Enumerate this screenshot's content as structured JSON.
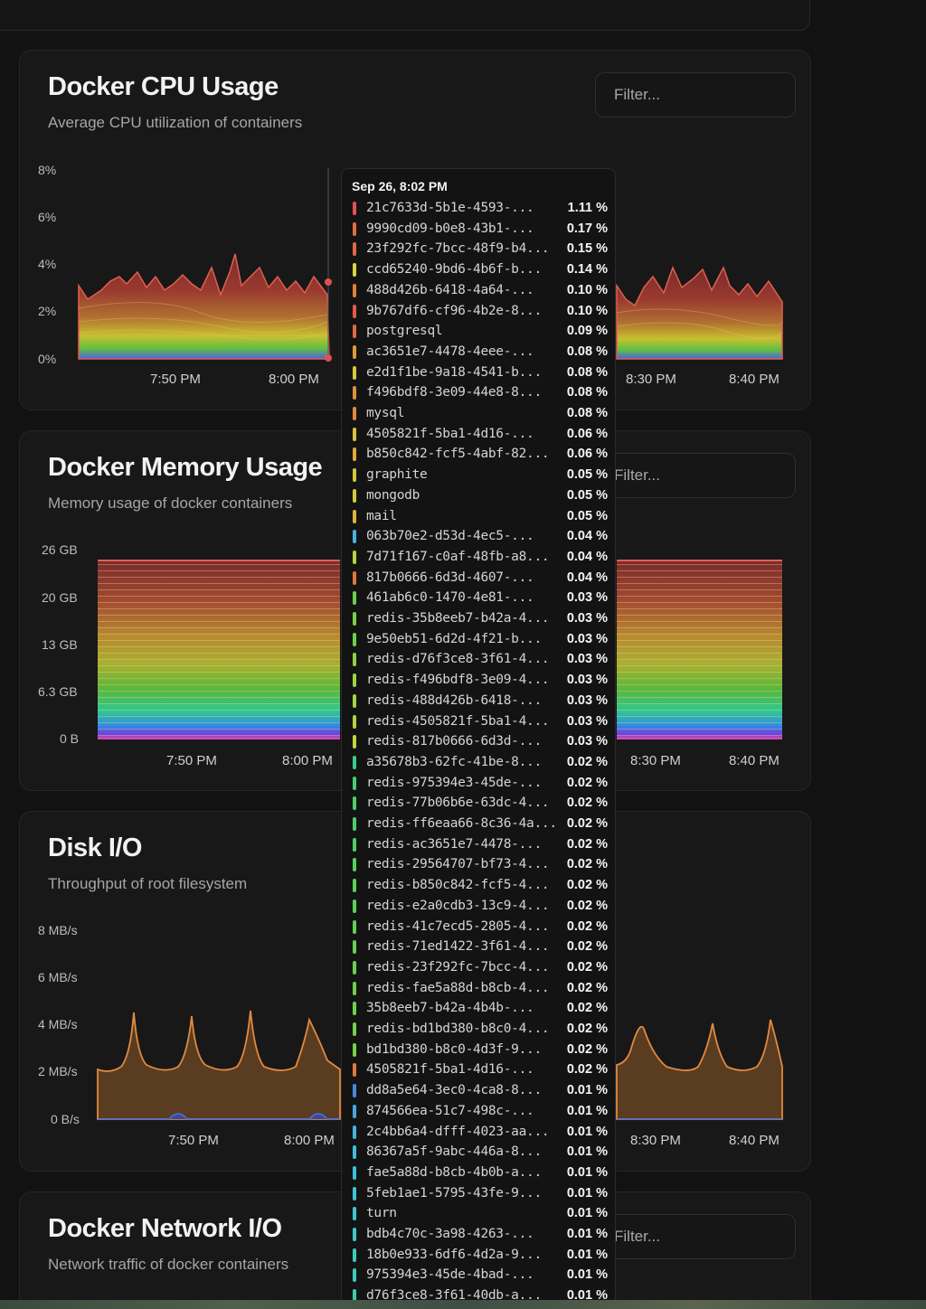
{
  "top": {
    "partial_text": ""
  },
  "cpu": {
    "title": "Docker CPU Usage",
    "subtitle": "Average CPU utilization of containers",
    "filter_placeholder": "Filter...",
    "yticks": [
      "8%",
      "6%",
      "4%",
      "2%",
      "0%"
    ],
    "xticks": [
      "7:50 PM",
      "8:00 PM",
      "8:30 PM",
      "8:40 PM"
    ]
  },
  "memory": {
    "title": "Docker Memory Usage",
    "subtitle": "Memory usage of docker containers",
    "filter_placeholder": "Filter...",
    "yticks": [
      "26 GB",
      "20 GB",
      "13 GB",
      "6.3 GB",
      "0 B"
    ],
    "xticks": [
      "7:50 PM",
      "8:00 PM",
      "8:30 PM",
      "8:40 PM"
    ]
  },
  "disk": {
    "title": "Disk I/O",
    "subtitle": "Throughput of root filesystem",
    "yticks": [
      "8 MB/s",
      "6 MB/s",
      "4 MB/s",
      "2 MB/s",
      "0 B/s"
    ],
    "xticks": [
      "7:50 PM",
      "8:00 PM",
      "8:30 PM",
      "8:40 PM"
    ]
  },
  "network": {
    "title": "Docker Network I/O",
    "subtitle": "Network traffic of docker containers",
    "filter_placeholder": "Filter..."
  },
  "tooltip": {
    "time": "Sep 26, 8:02 PM",
    "rows": [
      {
        "name": "21c7633d-5b1e-4593-...",
        "value": "1.11 %",
        "color": "#e05252"
      },
      {
        "name": "9990cd09-b0e8-43b1-...",
        "value": "0.17 %",
        "color": "#e0703e"
      },
      {
        "name": "23f292fc-7bcc-48f9-b4...",
        "value": "0.15 %",
        "color": "#e06848"
      },
      {
        "name": "ccd65240-9bd6-4b6f-b...",
        "value": "0.14 %",
        "color": "#d8d640"
      },
      {
        "name": "488d426b-6418-4a64-...",
        "value": "0.10 %",
        "color": "#e0803a"
      },
      {
        "name": "9b767df6-cf96-4b2e-8...",
        "value": "0.10 %",
        "color": "#e05a4a"
      },
      {
        "name": "postgresql",
        "value": "0.09 %",
        "color": "#e06a44"
      },
      {
        "name": "ac3651e7-4478-4eee-...",
        "value": "0.08 %",
        "color": "#e09a3a"
      },
      {
        "name": "e2d1f1be-9a18-4541-b...",
        "value": "0.08 %",
        "color": "#d8c83c"
      },
      {
        "name": "f496bdf8-3e09-44e8-8...",
        "value": "0.08 %",
        "color": "#e0903a"
      },
      {
        "name": "mysql",
        "value": "0.08 %",
        "color": "#e08a3c"
      },
      {
        "name": "4505821f-5ba1-4d16-...",
        "value": "0.06 %",
        "color": "#dcc03c"
      },
      {
        "name": "b850c842-fcf5-4abf-82...",
        "value": "0.06 %",
        "color": "#e0a83a"
      },
      {
        "name": "graphite",
        "value": "0.05 %",
        "color": "#d8c43c"
      },
      {
        "name": "mongodb",
        "value": "0.05 %",
        "color": "#d4c83e"
      },
      {
        "name": "mail",
        "value": "0.05 %",
        "color": "#dcb43c"
      },
      {
        "name": "063b70e2-d53d-4ec5-...",
        "value": "0.04 %",
        "color": "#4ab0e0"
      },
      {
        "name": "7d71f167-c0af-48fb-a8...",
        "value": "0.04 %",
        "color": "#b8d240"
      },
      {
        "name": "817b0666-6d3d-4607-...",
        "value": "0.04 %",
        "color": "#e0783e"
      },
      {
        "name": "461ab6c0-1470-4e81-...",
        "value": "0.03 %",
        "color": "#6cd04a"
      },
      {
        "name": "redis-35b8eeb7-b42a-4...",
        "value": "0.03 %",
        "color": "#7cd048"
      },
      {
        "name": "9e50eb51-6d2d-4f21-b...",
        "value": "0.03 %",
        "color": "#70d04a"
      },
      {
        "name": "redis-d76f3ce8-3f61-4...",
        "value": "0.03 %",
        "color": "#8ad246"
      },
      {
        "name": "redis-f496bdf8-3e09-4...",
        "value": "0.03 %",
        "color": "#9cd444"
      },
      {
        "name": "redis-488d426b-6418-...",
        "value": "0.03 %",
        "color": "#a4d442"
      },
      {
        "name": "redis-4505821f-5ba1-4...",
        "value": "0.03 %",
        "color": "#b0d442"
      },
      {
        "name": "redis-817b0666-6d3d-...",
        "value": "0.03 %",
        "color": "#c4d240"
      },
      {
        "name": "a35678b3-62fc-41be-8...",
        "value": "0.02 %",
        "color": "#40c88c"
      },
      {
        "name": "redis-975394e3-45de-...",
        "value": "0.02 %",
        "color": "#48cc70"
      },
      {
        "name": "redis-77b06b6e-63dc-4...",
        "value": "0.02 %",
        "color": "#50cc68"
      },
      {
        "name": "redis-ff6eaa66-8c36-4a...",
        "value": "0.02 %",
        "color": "#4ccc6c"
      },
      {
        "name": "redis-ac3651e7-4478-...",
        "value": "0.02 %",
        "color": "#52ce66"
      },
      {
        "name": "redis-29564707-bf73-4...",
        "value": "0.02 %",
        "color": "#58ce60"
      },
      {
        "name": "redis-b850c842-fcf5-4...",
        "value": "0.02 %",
        "color": "#5ece5c"
      },
      {
        "name": "redis-e2a0cdb3-13c9-4...",
        "value": "0.02 %",
        "color": "#5ece58"
      },
      {
        "name": "redis-41c7ecd5-2805-4...",
        "value": "0.02 %",
        "color": "#62ce56"
      },
      {
        "name": "redis-71ed1422-3f61-4...",
        "value": "0.02 %",
        "color": "#66ce52"
      },
      {
        "name": "redis-23f292fc-7bcc-4...",
        "value": "0.02 %",
        "color": "#6ad050"
      },
      {
        "name": "redis-fae5a88d-b8cb-4...",
        "value": "0.02 %",
        "color": "#6ed04e"
      },
      {
        "name": "35b8eeb7-b42a-4b4b-...",
        "value": "0.02 %",
        "color": "#72d04c"
      },
      {
        "name": "redis-bd1bd380-b8c0-4...",
        "value": "0.02 %",
        "color": "#76d04a"
      },
      {
        "name": "bd1bd380-b8c0-4d3f-9...",
        "value": "0.02 %",
        "color": "#7ad048"
      },
      {
        "name": "4505821f-5ba1-4d16-...",
        "value": "0.02 %",
        "color": "#e07a3c"
      },
      {
        "name": "dd8a5e64-3ec0-4ca8-8...",
        "value": "0.01 %",
        "color": "#4a88e0"
      },
      {
        "name": "874566ea-51c7-498c-...",
        "value": "0.01 %",
        "color": "#46a8e0"
      },
      {
        "name": "2c4bb6a4-dfff-4023-aa...",
        "value": "0.01 %",
        "color": "#44b4de"
      },
      {
        "name": "86367a5f-9abc-446a-8...",
        "value": "0.01 %",
        "color": "#42bcdc"
      },
      {
        "name": "fae5a88d-b8cb-4b0b-a...",
        "value": "0.01 %",
        "color": "#40c0d8"
      },
      {
        "name": "5feb1ae1-5795-43fe-9...",
        "value": "0.01 %",
        "color": "#40c4d4"
      },
      {
        "name": "turn",
        "value": "0.01 %",
        "color": "#40c6d0"
      },
      {
        "name": "bdb4c70c-3a98-4263-...",
        "value": "0.01 %",
        "color": "#40c8c8"
      },
      {
        "name": "18b0e933-6df6-4d2a-9...",
        "value": "0.01 %",
        "color": "#40c8c0"
      },
      {
        "name": "975394e3-45de-4bad-...",
        "value": "0.01 %",
        "color": "#40c8b8"
      },
      {
        "name": "d76f3ce8-3f61-40db-a...",
        "value": "0.01 %",
        "color": "#40c8b0"
      }
    ]
  }
}
